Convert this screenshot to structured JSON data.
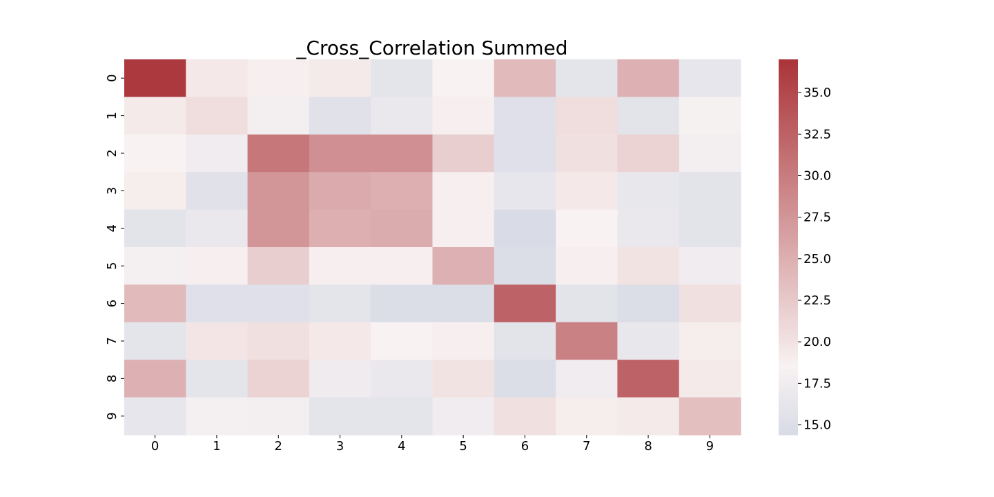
{
  "chart_data": {
    "type": "heatmap",
    "title": "_Cross_Correlation Summed",
    "xlabel": "",
    "ylabel": "",
    "x_categories": [
      "0",
      "1",
      "2",
      "3",
      "4",
      "5",
      "6",
      "7",
      "8",
      "9"
    ],
    "y_categories": [
      "0",
      "1",
      "2",
      "3",
      "4",
      "5",
      "6",
      "7",
      "8",
      "9"
    ],
    "values": [
      [
        36.5,
        19.5,
        18.8,
        19.3,
        16.0,
        18.5,
        24.0,
        16.0,
        24.8,
        16.3
      ],
      [
        19.3,
        20.5,
        17.8,
        15.5,
        16.8,
        18.8,
        15.3,
        20.5,
        15.8,
        18.3
      ],
      [
        18.5,
        17.5,
        30.5,
        28.0,
        28.0,
        22.0,
        15.3,
        20.3,
        21.5,
        17.8
      ],
      [
        19.0,
        15.5,
        27.5,
        25.5,
        25.0,
        18.8,
        16.3,
        19.5,
        16.5,
        15.8
      ],
      [
        15.8,
        16.8,
        27.5,
        25.0,
        25.3,
        18.8,
        14.5,
        18.5,
        16.8,
        15.8
      ],
      [
        18.0,
        18.8,
        22.0,
        18.8,
        18.8,
        24.8,
        14.8,
        18.8,
        20.0,
        17.5
      ],
      [
        24.0,
        15.3,
        15.3,
        16.0,
        14.8,
        14.8,
        32.5,
        15.8,
        14.8,
        20.3
      ],
      [
        16.0,
        19.8,
        20.3,
        19.5,
        18.5,
        18.8,
        15.8,
        29.5,
        16.5,
        19.0
      ],
      [
        24.8,
        16.0,
        21.5,
        17.3,
        16.8,
        20.0,
        14.8,
        17.5,
        32.5,
        19.3
      ],
      [
        16.3,
        18.0,
        17.8,
        16.0,
        16.0,
        17.5,
        20.3,
        19.0,
        19.3,
        23.5
      ]
    ],
    "vmin": 14.4,
    "vmax": 37.0,
    "colorbar": {
      "ticks": [
        15.0,
        17.5,
        20.0,
        22.5,
        25.0,
        27.5,
        30.0,
        32.5,
        35.0
      ],
      "tick_labels": [
        "15.0",
        "17.5",
        "20.0",
        "22.5",
        "25.0",
        "27.5",
        "30.0",
        "32.5",
        "35.0"
      ]
    },
    "colors": {
      "low": "#d8dbe6",
      "mid": "#f8f2f2",
      "high": "#aa3439"
    }
  }
}
